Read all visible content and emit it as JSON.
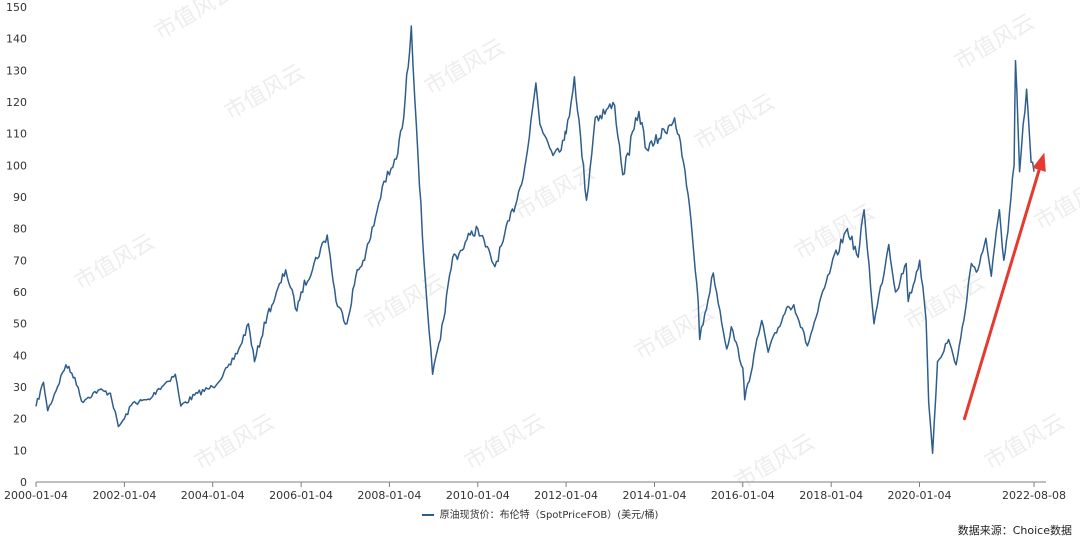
{
  "chart_data": {
    "type": "line",
    "title": "",
    "xlabel": "",
    "ylabel": "",
    "ylim": [
      0,
      150
    ],
    "yticks": [
      0,
      10,
      20,
      30,
      40,
      50,
      60,
      70,
      80,
      90,
      100,
      110,
      120,
      130,
      140,
      150
    ],
    "x_tick_labels": [
      "2000-01-04",
      "2002-01-04",
      "2004-01-04",
      "2006-01-04",
      "2008-01-04",
      "2010-01-04",
      "2012-01-04",
      "2014-01-04",
      "2016-01-04",
      "2018-01-04",
      "2020-01-04",
      "2022-08-08"
    ],
    "xlim": [
      "2000-01-04",
      "2022-11-15"
    ],
    "grid": false,
    "legend_position": "bottom",
    "series": [
      {
        "name": "原油现货价：布伦特（SpotPriceFOB）(美元/桶)",
        "color": "#2f5e8d",
        "points": [
          [
            "2000-01-04",
            23.9
          ],
          [
            "2000-03-06",
            31.5
          ],
          [
            "2000-04-10",
            22.5
          ],
          [
            "2000-09-07",
            37.0
          ],
          [
            "2000-11-20",
            33.0
          ],
          [
            "2001-01-15",
            25.5
          ],
          [
            "2001-06-01",
            29.0
          ],
          [
            "2001-09-10",
            28.0
          ],
          [
            "2001-11-15",
            17.5
          ],
          [
            "2002-01-04",
            20.0
          ],
          [
            "2002-03-15",
            25.0
          ],
          [
            "2002-08-01",
            26.0
          ],
          [
            "2002-10-01",
            29.0
          ],
          [
            "2003-03-01",
            34.0
          ],
          [
            "2003-04-15",
            24.0
          ],
          [
            "2003-09-01",
            28.0
          ],
          [
            "2004-01-04",
            30.0
          ],
          [
            "2004-06-01",
            37.0
          ],
          [
            "2004-08-20",
            43.0
          ],
          [
            "2004-10-25",
            50.0
          ],
          [
            "2004-12-15",
            38.0
          ],
          [
            "2005-04-01",
            53.0
          ],
          [
            "2005-06-01",
            58.0
          ],
          [
            "2005-08-30",
            67.0
          ],
          [
            "2005-11-30",
            54.0
          ],
          [
            "2006-01-04",
            60.0
          ],
          [
            "2006-08-08",
            78.0
          ],
          [
            "2006-10-20",
            57.0
          ],
          [
            "2007-01-18",
            50.0
          ],
          [
            "2007-04-01",
            65.0
          ],
          [
            "2007-06-01",
            70.0
          ],
          [
            "2007-08-01",
            77.0
          ],
          [
            "2007-11-20",
            95.0
          ],
          [
            "2008-01-04",
            97.0
          ],
          [
            "2008-03-01",
            102.0
          ],
          [
            "2008-05-01",
            115.0
          ],
          [
            "2008-07-03",
            144.0
          ],
          [
            "2008-08-15",
            112.0
          ],
          [
            "2008-10-15",
            70.0
          ],
          [
            "2008-12-26",
            34.0
          ],
          [
            "2009-03-01",
            45.0
          ],
          [
            "2009-06-10",
            71.0
          ],
          [
            "2009-08-01",
            72.0
          ],
          [
            "2009-11-01",
            78.0
          ],
          [
            "2010-01-04",
            80.0
          ],
          [
            "2010-05-25",
            68.0
          ],
          [
            "2010-08-01",
            76.0
          ],
          [
            "2010-12-20",
            93.0
          ],
          [
            "2011-02-20",
            105.0
          ],
          [
            "2011-04-29",
            126.0
          ],
          [
            "2011-06-01",
            113.0
          ],
          [
            "2011-10-01",
            104.0
          ],
          [
            "2011-12-20",
            108.0
          ],
          [
            "2012-01-04",
            110.0
          ],
          [
            "2012-03-13",
            128.0
          ],
          [
            "2012-06-21",
            89.0
          ],
          [
            "2012-09-01",
            115.0
          ],
          [
            "2013-02-08",
            119.0
          ],
          [
            "2013-04-17",
            97.0
          ],
          [
            "2013-08-28",
            117.0
          ],
          [
            "2013-11-01",
            105.0
          ],
          [
            "2014-01-04",
            107.0
          ],
          [
            "2014-06-19",
            115.0
          ],
          [
            "2014-09-01",
            101.0
          ],
          [
            "2014-11-01",
            83.0
          ],
          [
            "2014-12-31",
            57.0
          ],
          [
            "2015-01-13",
            45.0
          ],
          [
            "2015-05-05",
            66.0
          ],
          [
            "2015-08-24",
            42.0
          ],
          [
            "2015-10-01",
            49.0
          ],
          [
            "2016-01-04",
            36.0
          ],
          [
            "2016-01-20",
            26.0
          ],
          [
            "2016-06-08",
            51.0
          ],
          [
            "2016-08-01",
            41.0
          ],
          [
            "2016-12-31",
            55.0
          ],
          [
            "2017-03-01",
            56.0
          ],
          [
            "2017-06-21",
            43.0
          ],
          [
            "2017-09-01",
            52.0
          ],
          [
            "2018-01-04",
            68.0
          ],
          [
            "2018-05-17",
            80.0
          ],
          [
            "2018-08-15",
            71.0
          ],
          [
            "2018-10-03",
            86.0
          ],
          [
            "2018-12-24",
            50.0
          ],
          [
            "2019-04-25",
            75.0
          ],
          [
            "2019-06-20",
            60.0
          ],
          [
            "2019-09-16",
            69.0
          ],
          [
            "2019-10-03",
            57.0
          ],
          [
            "2020-01-06",
            70.0
          ],
          [
            "2020-02-28",
            51.0
          ],
          [
            "2020-03-20",
            25.0
          ],
          [
            "2020-04-21",
            9.1
          ],
          [
            "2020-06-01",
            38.0
          ],
          [
            "2020-09-01",
            45.0
          ],
          [
            "2020-11-02",
            37.0
          ],
          [
            "2021-01-04",
            51.0
          ],
          [
            "2021-03-08",
            69.0
          ],
          [
            "2021-05-01",
            67.0
          ],
          [
            "2021-07-06",
            77.0
          ],
          [
            "2021-08-20",
            65.0
          ],
          [
            "2021-10-26",
            86.0
          ],
          [
            "2021-12-01",
            70.0
          ],
          [
            "2022-01-04",
            79.0
          ],
          [
            "2022-02-24",
            100.0
          ],
          [
            "2022-03-08",
            133.0
          ],
          [
            "2022-04-11",
            98.0
          ],
          [
            "2022-06-08",
            124.0
          ],
          [
            "2022-07-15",
            101.0
          ],
          [
            "2022-08-08",
            98.0
          ]
        ]
      }
    ],
    "annotations": [
      {
        "type": "arrow",
        "color": "#e53a2f",
        "from": [
          "2021-01-10",
          20
        ],
        "to": [
          "2022-11-01",
          104
        ]
      }
    ]
  },
  "legend": {
    "label": "原油现货价：布伦特（SpotPriceFOB）(美元/桶)"
  },
  "source": "数据来源：Choice数据",
  "watermark": "市值风云"
}
